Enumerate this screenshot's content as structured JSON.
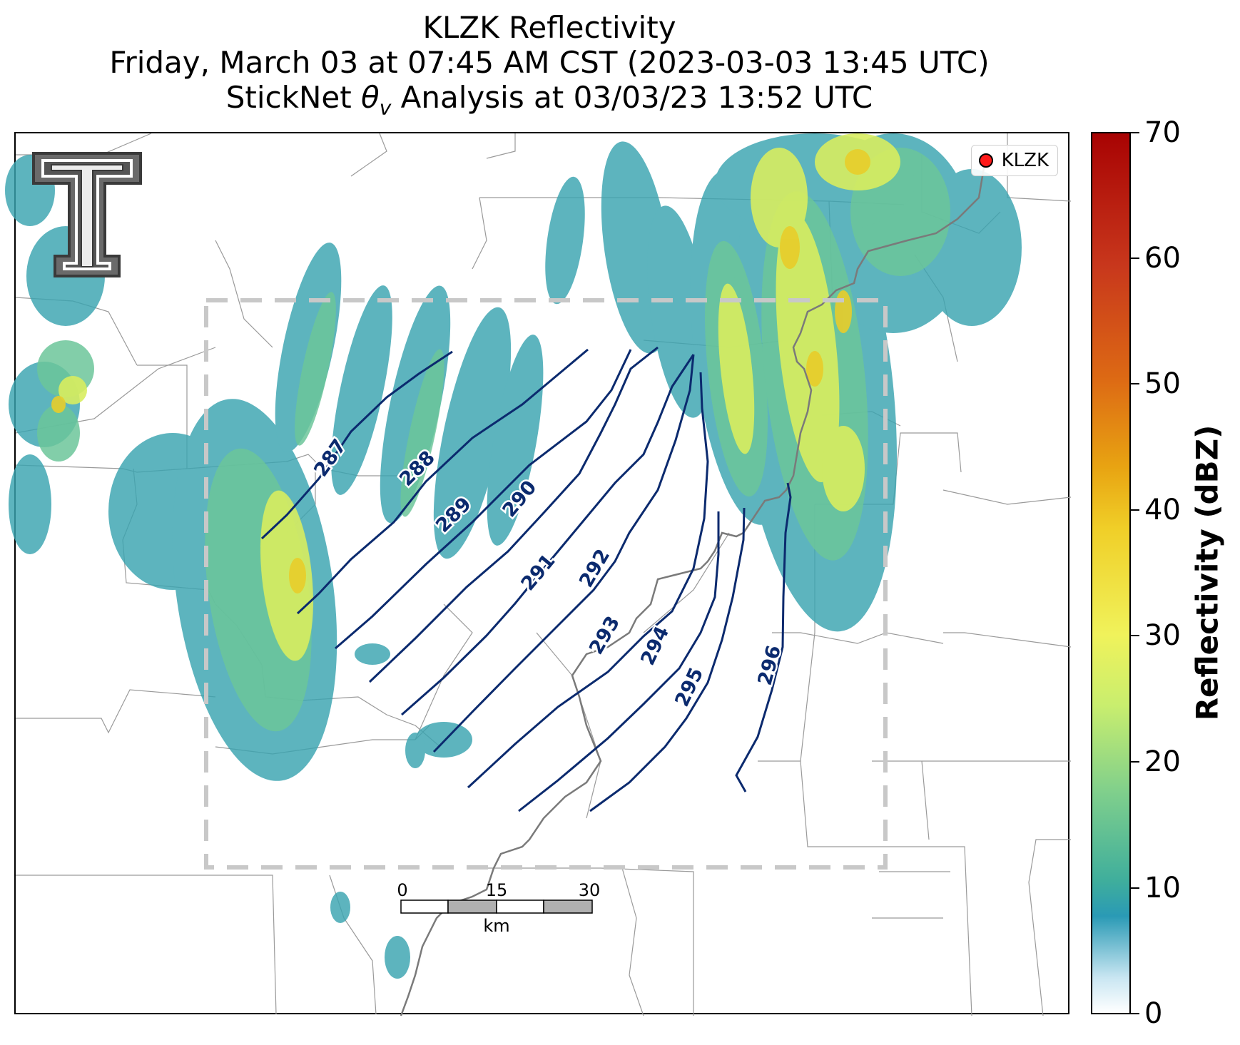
{
  "title": {
    "line1": "KLZK Reflectivity",
    "line2": "Friday, March 03 at 07:45 AM CST (2023-03-03 13:45 UTC)",
    "line3_prefix": "StickNet ",
    "line3_symbol": "θ",
    "line3_subscript": "v",
    "line3_suffix": " Analysis at 03/03/23 13:52 UTC"
  },
  "legend": {
    "label": "KLZK",
    "marker_color": "#ff1a1a"
  },
  "contours": {
    "color": "#0b2a6e",
    "levels": [
      "287",
      "288",
      "289",
      "290",
      "291",
      "292",
      "293",
      "294",
      "295",
      "296"
    ]
  },
  "analysis_box": {
    "style": "dashed",
    "color": "#c8c8c8"
  },
  "scalebar": {
    "ticks": [
      "0",
      "15",
      "30"
    ],
    "unit": "km"
  },
  "colorbar": {
    "title": "Reflectivity (dBZ)",
    "ticks": [
      "0",
      "10",
      "20",
      "30",
      "40",
      "50",
      "60",
      "70"
    ],
    "range": [
      0,
      70
    ]
  },
  "logo": {
    "name": "texas-tech-double-t-logo",
    "colors": [
      "#555555",
      "#ffffff"
    ]
  },
  "reflectivity_colors": {
    "light": "#3aa4b0",
    "moderate": "#6cc69a",
    "heavy": "#d9ee5f",
    "strong": "#e8cd2a"
  }
}
